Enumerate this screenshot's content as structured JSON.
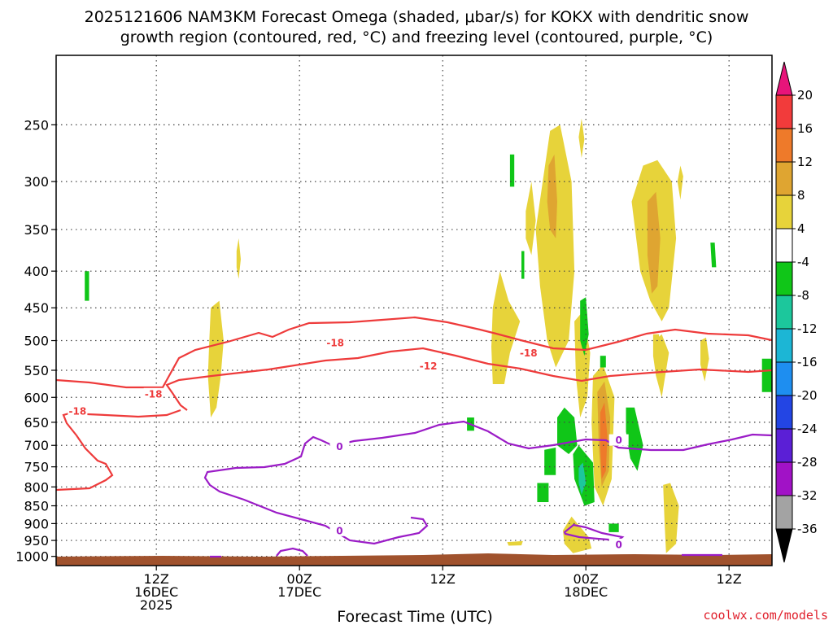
{
  "chart_data": {
    "type": "heatmap",
    "title_line1": "2025121606 NAM3KM Forecast Omega (shaded, μbar/s) for KOKX with dendritic snow",
    "title_line2": "growth region (contoured, red, °C) and freezing level (contoured, purple, °C)",
    "xlabel": "Forecast Time (UTC)",
    "y_ticks": [
      250,
      300,
      350,
      400,
      450,
      500,
      550,
      600,
      650,
      700,
      750,
      800,
      850,
      900,
      950,
      1000
    ],
    "y_range": [
      200,
      1030
    ],
    "y_scale": "log-pressure",
    "x_range_hours": [
      -1,
      49
    ],
    "x_ticks": [
      {
        "hour": 6,
        "line1": "12Z",
        "line2": "16DEC",
        "line3": "2025"
      },
      {
        "hour": 16,
        "line1": "00Z",
        "line2": "17DEC",
        "line3": ""
      },
      {
        "hour": 26,
        "line1": "12Z",
        "line2": "",
        "line3": ""
      },
      {
        "hour": 36,
        "line1": "00Z",
        "line2": "18DEC",
        "line3": ""
      },
      {
        "hour": 46,
        "line1": "12Z",
        "line2": "",
        "line3": ""
      }
    ],
    "grid": "dotted",
    "colorbar": {
      "labels": [
        "20",
        "16",
        "12",
        "8",
        "4",
        "-4",
        "-8",
        "-12",
        "-16",
        "-20",
        "-24",
        "-28",
        "-32",
        "-36"
      ],
      "bins": [
        {
          "color": "#f23b3b"
        },
        {
          "color": "#ee7a2a"
        },
        {
          "color": "#dfa531"
        },
        {
          "color": "#e7d33a"
        },
        {
          "color": "#ffffff"
        },
        {
          "color": "#10c618"
        },
        {
          "color": "#1cc79c"
        },
        {
          "color": "#1cb6d5"
        },
        {
          "color": "#1e8ef0"
        },
        {
          "color": "#2345e4"
        },
        {
          "color": "#5b1fd6"
        },
        {
          "color": "#a112c6"
        },
        {
          "color": "#a3a3a3"
        }
      ],
      "top_arrow_color": "#e8147a",
      "bottom_arrow_color": "#000000"
    },
    "contour_colors": {
      "dendritic": "#ee3b3b",
      "freezing": "#9b1cc7",
      "terrain": "#a0522d"
    },
    "contour_labels": [
      {
        "text": "-18",
        "hour": 0.5,
        "p": 627,
        "color": "#ee3b3b"
      },
      {
        "text": "-18",
        "hour": 5.8,
        "p": 593,
        "color": "#ee3b3b"
      },
      {
        "text": "-18",
        "hour": 18.5,
        "p": 503,
        "color": "#ee3b3b"
      },
      {
        "text": "-18",
        "hour": 32,
        "p": 520,
        "color": "#ee3b3b"
      },
      {
        "text": "-12",
        "hour": 25,
        "p": 542,
        "color": "#ee3b3b"
      },
      {
        "text": "0",
        "hour": 18.8,
        "p": 702,
        "color": "#9b1cc7"
      },
      {
        "text": "0",
        "hour": 18.8,
        "p": 920,
        "color": "#9b1cc7"
      },
      {
        "text": "0",
        "hour": 38.3,
        "p": 688,
        "color": "#9b1cc7"
      },
      {
        "text": "0",
        "hour": 38.3,
        "p": 962,
        "color": "#9b1cc7"
      }
    ],
    "shading": [
      {
        "bin": 3,
        "pts": [
          [
            9.8,
            450
          ],
          [
            10.4,
            440
          ],
          [
            10.7,
            500
          ],
          [
            10.5,
            560
          ],
          [
            10.2,
            620
          ],
          [
            9.8,
            640
          ],
          [
            9.6,
            560
          ],
          [
            9.7,
            500
          ]
        ]
      },
      {
        "bin": 3,
        "pts": [
          [
            11.6,
            375
          ],
          [
            11.75,
            360
          ],
          [
            11.9,
            385
          ],
          [
            11.75,
            410
          ],
          [
            11.6,
            395
          ]
        ]
      },
      {
        "bin": 3,
        "pts": [
          [
            29.5,
            450
          ],
          [
            30.0,
            400
          ],
          [
            30.6,
            440
          ],
          [
            31.4,
            470
          ],
          [
            30.7,
            520
          ],
          [
            30.3,
            575
          ],
          [
            29.5,
            575
          ],
          [
            29.4,
            510
          ]
        ]
      },
      {
        "bin": 3,
        "pts": [
          [
            32.5,
            350
          ],
          [
            33.5,
            255
          ],
          [
            34.2,
            250
          ],
          [
            35.0,
            300
          ],
          [
            35.2,
            400
          ],
          [
            34.8,
            500
          ],
          [
            33.9,
            545
          ],
          [
            33.3,
            500
          ],
          [
            32.8,
            420
          ]
        ]
      },
      {
        "bin": 3,
        "pts": [
          [
            31.8,
            330
          ],
          [
            32.2,
            300
          ],
          [
            32.5,
            340
          ],
          [
            32.2,
            380
          ],
          [
            31.8,
            360
          ]
        ]
      },
      {
        "bin": 3,
        "pts": [
          [
            35.5,
            260
          ],
          [
            35.7,
            245
          ],
          [
            35.9,
            262
          ],
          [
            35.7,
            278
          ]
        ]
      },
      {
        "bin": 3,
        "pts": [
          [
            39.2,
            320
          ],
          [
            40.0,
            285
          ],
          [
            41.0,
            280
          ],
          [
            42.0,
            300
          ],
          [
            42.3,
            360
          ],
          [
            41.8,
            450
          ],
          [
            41.3,
            470
          ],
          [
            40.5,
            440
          ],
          [
            39.8,
            400
          ]
        ]
      },
      {
        "bin": 3,
        "pts": [
          [
            42.4,
            300
          ],
          [
            42.6,
            285
          ],
          [
            42.8,
            295
          ],
          [
            42.6,
            318
          ]
        ]
      },
      {
        "bin": 3,
        "pts": [
          [
            35.2,
            470
          ],
          [
            35.8,
            455
          ],
          [
            36.3,
            520
          ],
          [
            36.1,
            600
          ],
          [
            35.6,
            640
          ],
          [
            35.3,
            560
          ]
        ]
      },
      {
        "bin": 3,
        "pts": [
          [
            40.8,
            500
          ],
          [
            41.3,
            490
          ],
          [
            41.8,
            520
          ],
          [
            41.3,
            600
          ],
          [
            40.9,
            560
          ]
        ]
      },
      {
        "bin": 3,
        "pts": [
          [
            41.4,
            795
          ],
          [
            41.9,
            790
          ],
          [
            42.5,
            850
          ],
          [
            42.3,
            960
          ],
          [
            41.6,
            990
          ],
          [
            41.5,
            900
          ]
        ]
      },
      {
        "bin": 3,
        "pts": [
          [
            34.4,
            920
          ],
          [
            35.0,
            880
          ],
          [
            36.2,
            940
          ],
          [
            36.4,
            975
          ],
          [
            35.1,
            990
          ],
          [
            34.5,
            960
          ]
        ]
      },
      {
        "bin": 3,
        "pts": [
          [
            30.5,
            955
          ],
          [
            31.6,
            952
          ],
          [
            31.5,
            965
          ],
          [
            30.6,
            966
          ]
        ]
      },
      {
        "bin": 3,
        "pts": [
          [
            44.0,
            500
          ],
          [
            44.4,
            495
          ],
          [
            44.6,
            530
          ],
          [
            44.3,
            570
          ],
          [
            44.0,
            540
          ]
        ]
      },
      {
        "bin": 3,
        "pts": [
          [
            40.7,
            490
          ],
          [
            41.1,
            490
          ],
          [
            41.2,
            545
          ],
          [
            40.9,
            560
          ],
          [
            40.7,
            525
          ]
        ]
      },
      {
        "bin": 2,
        "pts": [
          [
            33.4,
            285
          ],
          [
            33.8,
            275
          ],
          [
            34.0,
            320
          ],
          [
            33.9,
            360
          ],
          [
            33.5,
            350
          ],
          [
            33.3,
            320
          ]
        ]
      },
      {
        "bin": 2,
        "pts": [
          [
            40.3,
            320
          ],
          [
            40.9,
            310
          ],
          [
            41.2,
            360
          ],
          [
            41.0,
            420
          ],
          [
            40.6,
            430
          ],
          [
            40.3,
            380
          ]
        ]
      },
      {
        "bin": 3,
        "pts": [
          [
            36.5,
            560
          ],
          [
            37.2,
            540
          ],
          [
            38.0,
            600
          ],
          [
            37.8,
            780
          ],
          [
            37.2,
            850
          ],
          [
            36.6,
            800
          ],
          [
            36.4,
            650
          ]
        ]
      },
      {
        "bin": 2,
        "pts": [
          [
            36.8,
            590
          ],
          [
            37.3,
            570
          ],
          [
            37.7,
            640
          ],
          [
            37.6,
            760
          ],
          [
            37.1,
            800
          ],
          [
            36.9,
            700
          ]
        ]
      },
      {
        "bin": 1,
        "pts": [
          [
            37.0,
            630
          ],
          [
            37.3,
            610
          ],
          [
            37.5,
            680
          ],
          [
            37.4,
            760
          ],
          [
            37.1,
            780
          ],
          [
            37.0,
            700
          ]
        ]
      },
      {
        "bin": 5,
        "pts": [
          [
            1.0,
            400
          ],
          [
            1.3,
            400
          ],
          [
            1.3,
            440
          ],
          [
            1.0,
            440
          ]
        ]
      },
      {
        "bin": 5,
        "pts": [
          [
            30.7,
            275
          ],
          [
            31.0,
            275
          ],
          [
            31.0,
            305
          ],
          [
            30.7,
            305
          ]
        ]
      },
      {
        "bin": 5,
        "pts": [
          [
            31.5,
            375
          ],
          [
            31.7,
            375
          ],
          [
            31.7,
            410
          ],
          [
            31.5,
            410
          ]
        ]
      },
      {
        "bin": 5,
        "pts": [
          [
            44.7,
            365
          ],
          [
            45.0,
            365
          ],
          [
            45.1,
            395
          ],
          [
            44.8,
            395
          ]
        ]
      },
      {
        "bin": 5,
        "pts": [
          [
            35.6,
            440
          ],
          [
            36.0,
            435
          ],
          [
            36.2,
            490
          ],
          [
            35.9,
            525
          ],
          [
            35.6,
            500
          ]
        ]
      },
      {
        "bin": 5,
        "pts": [
          [
            37.0,
            525
          ],
          [
            37.4,
            525
          ],
          [
            37.4,
            545
          ],
          [
            37.0,
            545
          ]
        ]
      },
      {
        "bin": 5,
        "pts": [
          [
            27.7,
            640
          ],
          [
            28.2,
            640
          ],
          [
            28.2,
            668
          ],
          [
            27.7,
            668
          ]
        ]
      },
      {
        "bin": 5,
        "pts": [
          [
            34.0,
            640
          ],
          [
            34.5,
            620
          ],
          [
            35.2,
            640
          ],
          [
            35.4,
            700
          ],
          [
            34.8,
            720
          ],
          [
            34.0,
            700
          ]
        ]
      },
      {
        "bin": 5,
        "pts": [
          [
            35.1,
            720
          ],
          [
            35.5,
            700
          ],
          [
            36.5,
            740
          ],
          [
            36.6,
            840
          ],
          [
            35.9,
            850
          ],
          [
            35.2,
            780
          ]
        ]
      },
      {
        "bin": 6,
        "pts": [
          [
            35.5,
            750
          ],
          [
            35.8,
            740
          ],
          [
            36.0,
            790
          ],
          [
            35.7,
            820
          ],
          [
            35.5,
            790
          ]
        ]
      },
      {
        "bin": 5,
        "pts": [
          [
            33.1,
            710
          ],
          [
            33.9,
            705
          ],
          [
            33.9,
            770
          ],
          [
            33.1,
            770
          ]
        ]
      },
      {
        "bin": 5,
        "pts": [
          [
            32.6,
            790
          ],
          [
            33.4,
            790
          ],
          [
            33.4,
            840
          ],
          [
            32.6,
            840
          ]
        ]
      },
      {
        "bin": 5,
        "pts": [
          [
            38.8,
            620
          ],
          [
            39.4,
            620
          ],
          [
            40.0,
            700
          ],
          [
            39.6,
            760
          ],
          [
            39.1,
            730
          ],
          [
            38.8,
            670
          ]
        ]
      },
      {
        "bin": 5,
        "pts": [
          [
            37.6,
            900
          ],
          [
            38.3,
            900
          ],
          [
            38.3,
            925
          ],
          [
            37.6,
            925
          ]
        ]
      },
      {
        "bin": 5,
        "pts": [
          [
            48.3,
            530
          ],
          [
            49.0,
            530
          ],
          [
            49.0,
            590
          ],
          [
            48.3,
            590
          ]
        ]
      }
    ]
  },
  "credit": "coolwx.com/models"
}
